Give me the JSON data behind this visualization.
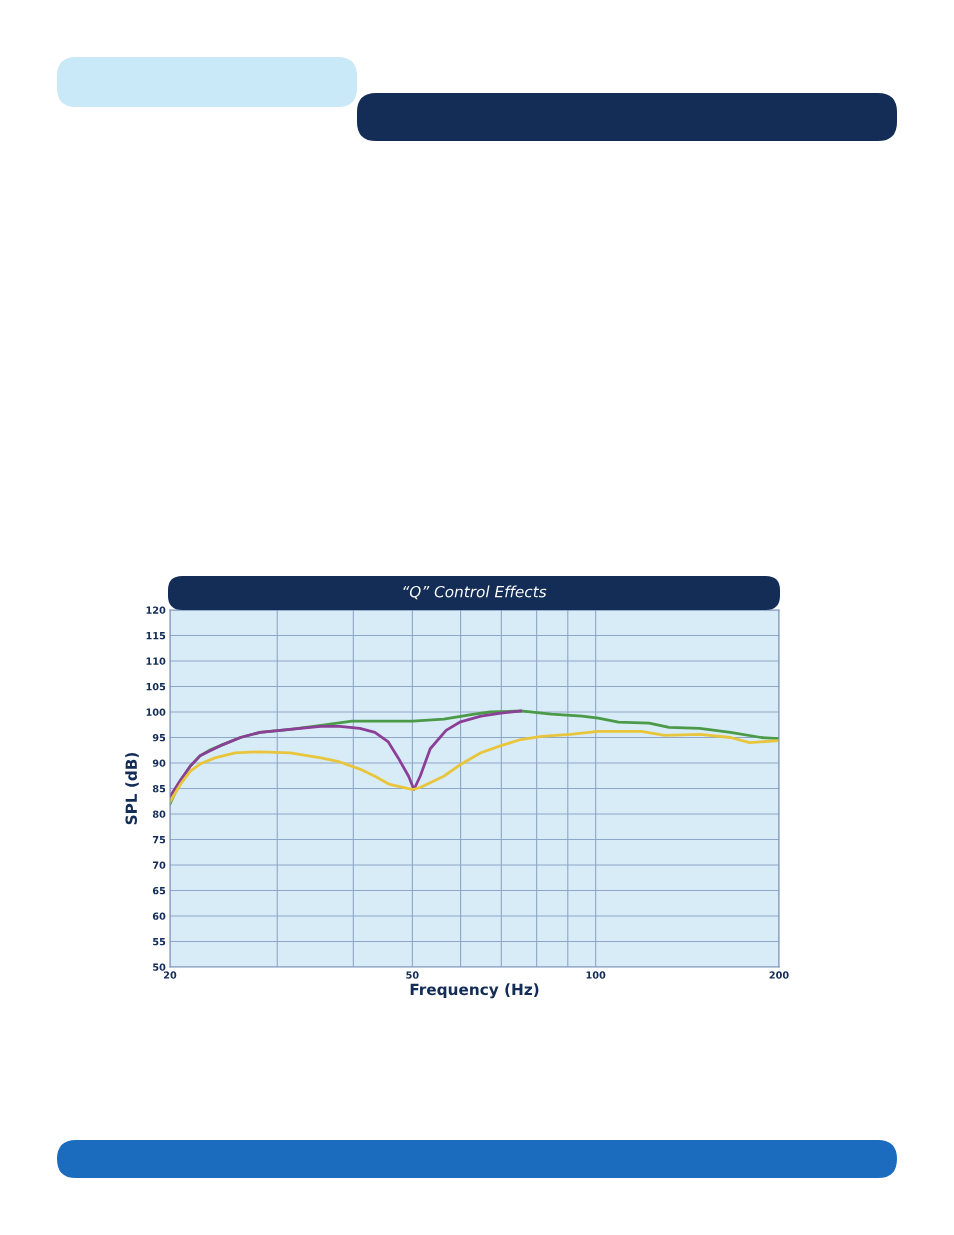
{
  "chart_data": {
    "type": "line",
    "title": "“Q” Control Effects",
    "xlabel": "Frequency (Hz)",
    "ylabel": "SPL (dB)",
    "log": "x",
    "grid": true,
    "marker": "none",
    "line_style": "solid",
    "xlim": [
      20,
      200
    ],
    "ylim": [
      50,
      120
    ],
    "xticks": [
      20,
      {
        "value": 30,
        "label": null
      },
      {
        "value": 40,
        "label": null
      },
      50,
      {
        "value": 60,
        "label": null
      },
      {
        "value": 70,
        "label": null
      },
      {
        "value": 80,
        "label": null
      },
      {
        "value": 90,
        "label": null
      },
      100,
      200
    ],
    "yticks": [
      50,
      55,
      60,
      65,
      70,
      75,
      80,
      85,
      90,
      95,
      100,
      105,
      110,
      115,
      120
    ],
    "series": [
      {
        "color": "#4a9a47",
        "x": [
          20,
          20.8,
          21.6,
          22.4,
          23.3,
          24.2,
          26.1,
          28.1,
          31.5,
          35.4,
          39.8,
          44.6,
          50.1,
          56.3,
          63.2,
          67.1,
          75.3,
          84.6,
          95.0,
          101.0,
          109.0,
          122.4,
          132.0,
          148.2,
          166.5,
          187.0,
          200
        ],
        "values": [
          82,
          86.4,
          89.4,
          91.4,
          92.6,
          93.4,
          95,
          96,
          96.6,
          97.4,
          98.2,
          98.2,
          98.2,
          98.6,
          99.6,
          100,
          100.2,
          99.6,
          99.2,
          98.8,
          98,
          97.8,
          97,
          96.8,
          96,
          95,
          94.8
        ]
      },
      {
        "color": "#8b3f96",
        "x": [
          20,
          20.8,
          21.6,
          22.4,
          24.2,
          26.1,
          28.1,
          31.5,
          35.4,
          38.0,
          41.0,
          43.4,
          45.6,
          47.4,
          49.3,
          50.3,
          51.5,
          53.5,
          56.8,
          59.8,
          64.8,
          69.9,
          75.3
        ],
        "values": [
          83.4,
          86.6,
          89.4,
          91.4,
          93.4,
          95,
          96,
          96.6,
          97.2,
          97.2,
          96.8,
          96,
          94.2,
          91,
          87.4,
          84.8,
          87.4,
          92.8,
          96.4,
          98,
          99.2,
          99.8,
          100.2
        ]
      },
      {
        "color": "#e8c53a",
        "x": [
          20,
          20.8,
          21.6,
          22.4,
          23.7,
          25.6,
          28.1,
          31.5,
          35.4,
          38.0,
          41.0,
          43.4,
          45.9,
          50.1,
          51.5,
          56.3,
          59.8,
          64.8,
          69.9,
          75.3,
          81.6,
          90.8,
          101.0,
          118.8,
          129.8,
          148.2,
          166.5,
          178.9,
          200
        ],
        "values": [
          82.4,
          85.8,
          88.4,
          89.8,
          91,
          92,
          92.2,
          92,
          91,
          90.2,
          88.8,
          87.4,
          85.8,
          84.8,
          85.2,
          87.4,
          89.6,
          92,
          93.4,
          94.6,
          95.2,
          95.6,
          96.2,
          96.2,
          95.4,
          95.6,
          95,
          94,
          94.4
        ]
      }
    ]
  }
}
